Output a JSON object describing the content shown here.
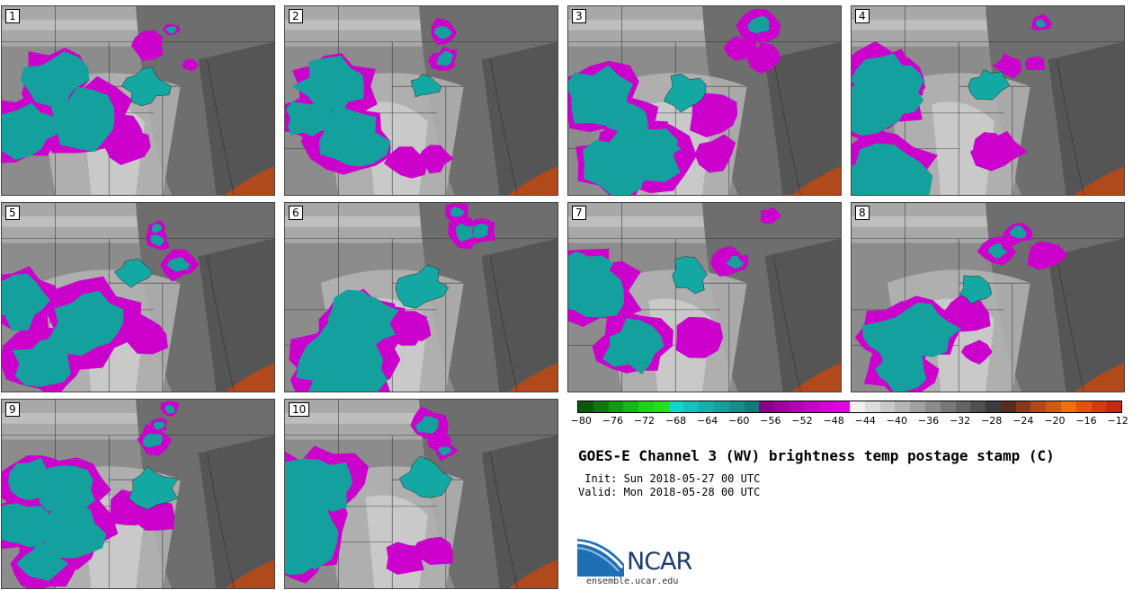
{
  "panels": [
    {
      "label": "1"
    },
    {
      "label": "2"
    },
    {
      "label": "3"
    },
    {
      "label": "4"
    },
    {
      "label": "5"
    },
    {
      "label": "6"
    },
    {
      "label": "7"
    },
    {
      "label": "8"
    },
    {
      "label": "9"
    },
    {
      "label": "10"
    }
  ],
  "colorbar": {
    "ticks": [
      "−80",
      "−76",
      "−72",
      "−68",
      "−64",
      "−60",
      "−56",
      "−52",
      "−48",
      "−44",
      "−40",
      "−36",
      "−32",
      "−28",
      "−24",
      "−20",
      "−16",
      "−12"
    ],
    "colors": [
      "#0a5a0a",
      "#0e7a0e",
      "#139a13",
      "#16b816",
      "#1ad41a",
      "#20e020",
      "#0cd8cc",
      "#10c4bc",
      "#14b0aa",
      "#14a09c",
      "#138e8c",
      "#117c7c",
      "#880088",
      "#a000a0",
      "#b600b6",
      "#c800c8",
      "#d800d8",
      "#e400e4",
      "#f0f0f0",
      "#dcdcdc",
      "#c8c8c8",
      "#b4b4b4",
      "#a0a0a0",
      "#8c8c8c",
      "#787878",
      "#646464",
      "#505050",
      "#3c3c3c",
      "#5a2a1a",
      "#8a3a1a",
      "#b04a1a",
      "#d05a10",
      "#ee7010",
      "#e85010",
      "#d83a10",
      "#c82810"
    ]
  },
  "title": "GOES-E Channel 3 (WV) brightness temp postage stamp (C)",
  "init": " Init: Sun 2018-05-27 00 UTC",
  "valid": "Valid: Mon 2018-05-28 00 UTC",
  "logo": {
    "name": "NCAR",
    "url": "ensemble.ucar.edu"
  }
}
